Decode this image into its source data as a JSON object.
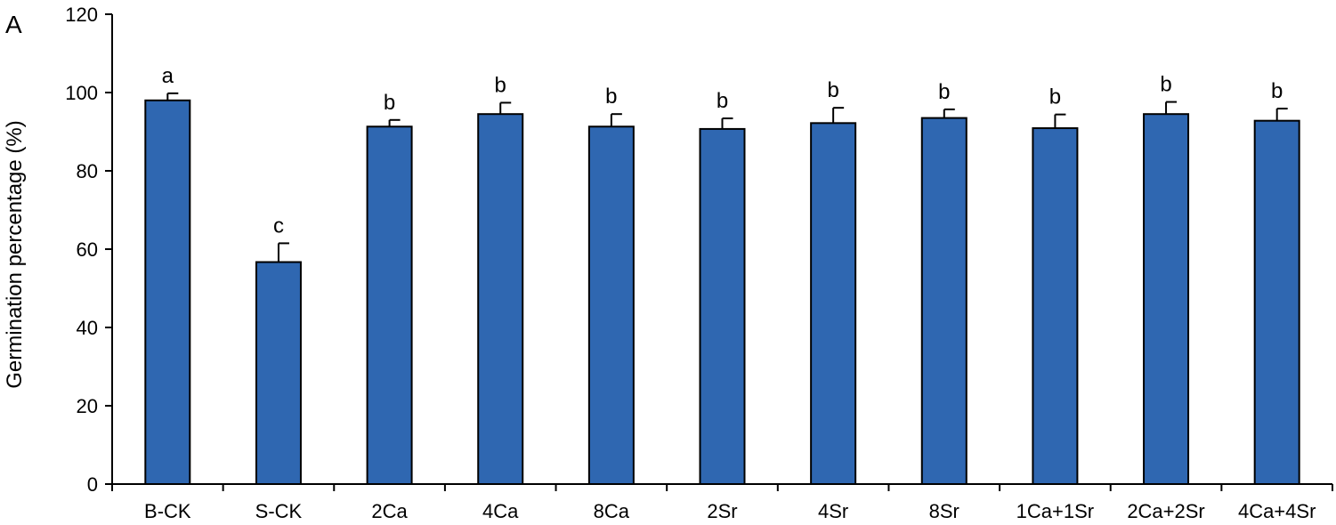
{
  "panel_label": "A",
  "chart_data": {
    "type": "bar",
    "title": "",
    "xlabel": "",
    "ylabel": "Germination percentage (%)",
    "ylim": [
      0,
      120
    ],
    "yticks": [
      0,
      20,
      40,
      60,
      80,
      100,
      120
    ],
    "categories": [
      "B-CK",
      "S-CK",
      "2Ca",
      "4Ca",
      "8Ca",
      "2Sr",
      "4Sr",
      "8Sr",
      "1Ca+1Sr",
      "2Ca+2Sr",
      "4Ca+4Sr"
    ],
    "values": [
      98,
      56.7,
      91.3,
      94.5,
      91.3,
      90.7,
      92.2,
      93.5,
      90.9,
      94.5,
      92.8
    ],
    "errors": [
      1.8,
      4.8,
      1.7,
      2.9,
      3.2,
      2.7,
      3.9,
      2.2,
      3.5,
      3.1,
      3.1
    ],
    "significance": [
      "a",
      "c",
      "b",
      "b",
      "b",
      "b",
      "b",
      "b",
      "b",
      "b",
      "b"
    ],
    "bar_color": "#2f67b1",
    "grid": false
  }
}
